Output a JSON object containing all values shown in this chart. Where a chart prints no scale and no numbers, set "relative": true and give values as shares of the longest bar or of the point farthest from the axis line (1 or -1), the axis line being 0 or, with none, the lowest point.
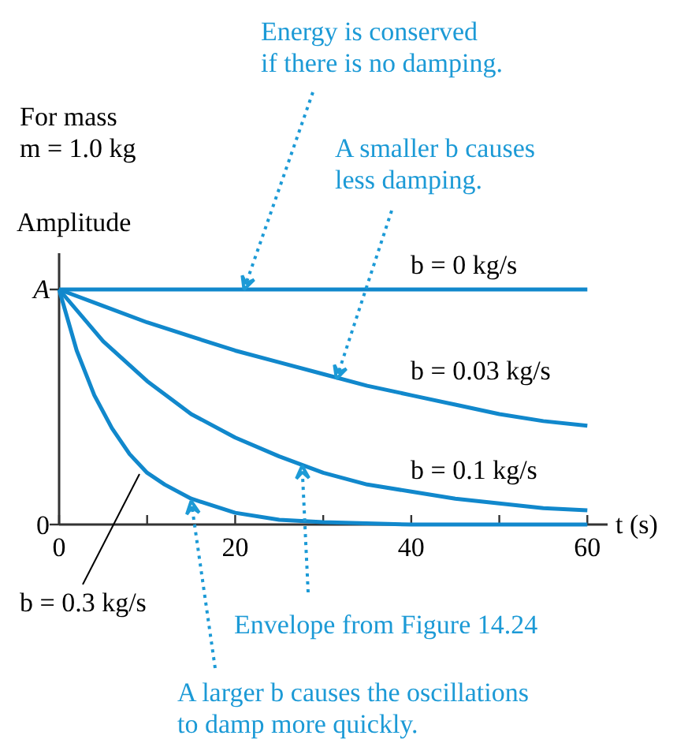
{
  "chart_data": {
    "type": "line",
    "xlabel": "t (s)",
    "ylabel": "Amplitude",
    "relative": true,
    "x": [
      0,
      5,
      10,
      15,
      20,
      25,
      30,
      35,
      40,
      45,
      50,
      55,
      60
    ],
    "series": [
      {
        "name": "b = 0 kg/s",
        "color": "#1188cc",
        "values": [
          1,
          1,
          1,
          1,
          1,
          1,
          1,
          1,
          1,
          1,
          1,
          1,
          1
        ]
      },
      {
        "name": "b = 0.03 kg/s",
        "color": "#1188cc",
        "values": [
          1,
          0.93,
          0.86,
          0.8,
          0.74,
          0.69,
          0.64,
          0.59,
          0.55,
          0.51,
          0.47,
          0.44,
          0.42
        ]
      },
      {
        "name": "b = 0.1 kg/s",
        "color": "#1188cc",
        "values": [
          1,
          0.78,
          0.61,
          0.47,
          0.37,
          0.29,
          0.22,
          0.17,
          0.14,
          0.11,
          0.09,
          0.07,
          0.06
        ]
      },
      {
        "name": "b = 0.3 kg/s",
        "color": "#1188cc",
        "x": [
          0,
          2,
          4,
          6,
          8,
          10,
          12,
          15,
          20,
          25,
          30,
          40,
          60
        ],
        "values": [
          1,
          0.74,
          0.55,
          0.41,
          0.3,
          0.22,
          0.17,
          0.11,
          0.05,
          0.02,
          0.01,
          0,
          0
        ]
      }
    ],
    "xlim": [
      0,
      62.3
    ],
    "xticks": [
      0,
      {
        "value": 10,
        "label": null
      },
      20,
      {
        "value": 30,
        "label": null
      },
      40,
      {
        "value": 50,
        "label": null
      },
      60
    ],
    "grid": false,
    "marker": "none",
    "line_style": "solid",
    "annotations": [
      "For mass\nm = 1.0 kg",
      {
        "text": "Energy is conserved\nif there is no damping.",
        "x": 21,
        "y": 1
      },
      {
        "text": "A smaller b causes\nless damping.",
        "x": 31.5,
        "y": 0.62
      },
      {
        "text": "Envelope from Figure 14.24",
        "x": 27.6,
        "y": 0.25
      },
      {
        "text": "A larger b causes the oscillations\nto damp more quickly.",
        "x": 15,
        "y": 0.1
      },
      "A",
      "0"
    ]
  }
}
